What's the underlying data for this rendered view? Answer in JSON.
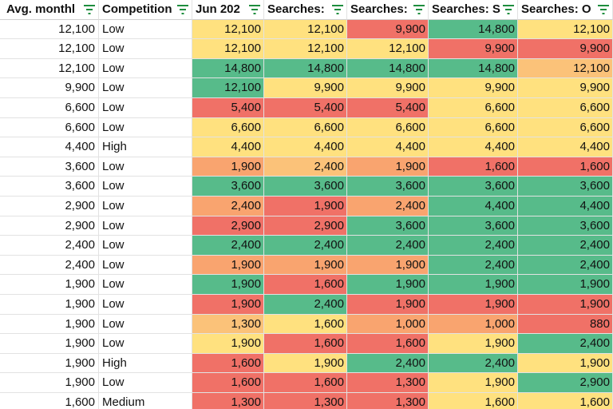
{
  "colors": {
    "green": "#57bb8a",
    "yellow": "#ffe17f",
    "red": "#f07167",
    "orange": "#f9a46f",
    "light_orange": "#fbc279",
    "filter_icon": "#1e8e3e"
  },
  "headers": [
    {
      "label": "Avg. monthl"
    },
    {
      "label": "Competition"
    },
    {
      "label": "Jun 202"
    },
    {
      "label": "Searches:"
    },
    {
      "label": "Searches:"
    },
    {
      "label": "Searches: S"
    },
    {
      "label": "Searches: O"
    }
  ],
  "rows": [
    {
      "avg": "12,100",
      "comp": "Low",
      "vals": [
        {
          "v": "12,100",
          "c": "yellow"
        },
        {
          "v": "12,100",
          "c": "yellow"
        },
        {
          "v": "9,900",
          "c": "red"
        },
        {
          "v": "14,800",
          "c": "green"
        },
        {
          "v": "12,100",
          "c": "yellow"
        }
      ]
    },
    {
      "avg": "12,100",
      "comp": "Low",
      "vals": [
        {
          "v": "12,100",
          "c": "yellow"
        },
        {
          "v": "12,100",
          "c": "yellow"
        },
        {
          "v": "12,100",
          "c": "yellow"
        },
        {
          "v": "9,900",
          "c": "red"
        },
        {
          "v": "9,900",
          "c": "red"
        }
      ]
    },
    {
      "avg": "12,100",
      "comp": "Low",
      "vals": [
        {
          "v": "14,800",
          "c": "green"
        },
        {
          "v": "14,800",
          "c": "green"
        },
        {
          "v": "14,800",
          "c": "green"
        },
        {
          "v": "14,800",
          "c": "green"
        },
        {
          "v": "12,100",
          "c": "light_orange"
        }
      ]
    },
    {
      "avg": "9,900",
      "comp": "Low",
      "vals": [
        {
          "v": "12,100",
          "c": "green"
        },
        {
          "v": "9,900",
          "c": "yellow"
        },
        {
          "v": "9,900",
          "c": "yellow"
        },
        {
          "v": "9,900",
          "c": "yellow"
        },
        {
          "v": "9,900",
          "c": "yellow"
        }
      ]
    },
    {
      "avg": "6,600",
      "comp": "Low",
      "vals": [
        {
          "v": "5,400",
          "c": "red"
        },
        {
          "v": "5,400",
          "c": "red"
        },
        {
          "v": "5,400",
          "c": "red"
        },
        {
          "v": "6,600",
          "c": "yellow"
        },
        {
          "v": "6,600",
          "c": "yellow"
        }
      ]
    },
    {
      "avg": "6,600",
      "comp": "Low",
      "vals": [
        {
          "v": "6,600",
          "c": "yellow"
        },
        {
          "v": "6,600",
          "c": "yellow"
        },
        {
          "v": "6,600",
          "c": "yellow"
        },
        {
          "v": "6,600",
          "c": "yellow"
        },
        {
          "v": "6,600",
          "c": "yellow"
        }
      ]
    },
    {
      "avg": "4,400",
      "comp": "High",
      "vals": [
        {
          "v": "4,400",
          "c": "yellow"
        },
        {
          "v": "4,400",
          "c": "yellow"
        },
        {
          "v": "4,400",
          "c": "yellow"
        },
        {
          "v": "4,400",
          "c": "yellow"
        },
        {
          "v": "4,400",
          "c": "yellow"
        }
      ]
    },
    {
      "avg": "3,600",
      "comp": "Low",
      "vals": [
        {
          "v": "1,900",
          "c": "orange"
        },
        {
          "v": "2,400",
          "c": "light_orange"
        },
        {
          "v": "1,900",
          "c": "orange"
        },
        {
          "v": "1,600",
          "c": "red"
        },
        {
          "v": "1,600",
          "c": "red"
        }
      ]
    },
    {
      "avg": "3,600",
      "comp": "Low",
      "vals": [
        {
          "v": "3,600",
          "c": "green"
        },
        {
          "v": "3,600",
          "c": "green"
        },
        {
          "v": "3,600",
          "c": "green"
        },
        {
          "v": "3,600",
          "c": "green"
        },
        {
          "v": "3,600",
          "c": "green"
        }
      ]
    },
    {
      "avg": "2,900",
      "comp": "Low",
      "vals": [
        {
          "v": "2,400",
          "c": "orange"
        },
        {
          "v": "1,900",
          "c": "red"
        },
        {
          "v": "2,400",
          "c": "orange"
        },
        {
          "v": "4,400",
          "c": "green"
        },
        {
          "v": "4,400",
          "c": "green"
        }
      ]
    },
    {
      "avg": "2,900",
      "comp": "Low",
      "vals": [
        {
          "v": "2,900",
          "c": "red"
        },
        {
          "v": "2,900",
          "c": "red"
        },
        {
          "v": "3,600",
          "c": "green"
        },
        {
          "v": "3,600",
          "c": "green"
        },
        {
          "v": "3,600",
          "c": "green"
        }
      ]
    },
    {
      "avg": "2,400",
      "comp": "Low",
      "vals": [
        {
          "v": "2,400",
          "c": "green"
        },
        {
          "v": "2,400",
          "c": "green"
        },
        {
          "v": "2,400",
          "c": "green"
        },
        {
          "v": "2,400",
          "c": "green"
        },
        {
          "v": "2,400",
          "c": "green"
        }
      ]
    },
    {
      "avg": "2,400",
      "comp": "Low",
      "vals": [
        {
          "v": "1,900",
          "c": "orange"
        },
        {
          "v": "1,900",
          "c": "orange"
        },
        {
          "v": "1,900",
          "c": "orange"
        },
        {
          "v": "2,400",
          "c": "green"
        },
        {
          "v": "2,400",
          "c": "green"
        }
      ]
    },
    {
      "avg": "1,900",
      "comp": "Low",
      "vals": [
        {
          "v": "1,900",
          "c": "green"
        },
        {
          "v": "1,600",
          "c": "red"
        },
        {
          "v": "1,900",
          "c": "green"
        },
        {
          "v": "1,900",
          "c": "green"
        },
        {
          "v": "1,900",
          "c": "green"
        }
      ]
    },
    {
      "avg": "1,900",
      "comp": "Low",
      "vals": [
        {
          "v": "1,900",
          "c": "red"
        },
        {
          "v": "2,400",
          "c": "green"
        },
        {
          "v": "1,900",
          "c": "red"
        },
        {
          "v": "1,900",
          "c": "red"
        },
        {
          "v": "1,900",
          "c": "red"
        }
      ]
    },
    {
      "avg": "1,900",
      "comp": "Low",
      "vals": [
        {
          "v": "1,300",
          "c": "light_orange"
        },
        {
          "v": "1,600",
          "c": "yellow"
        },
        {
          "v": "1,000",
          "c": "orange"
        },
        {
          "v": "1,000",
          "c": "orange"
        },
        {
          "v": "880",
          "c": "red"
        }
      ]
    },
    {
      "avg": "1,900",
      "comp": "Low",
      "vals": [
        {
          "v": "1,900",
          "c": "yellow"
        },
        {
          "v": "1,600",
          "c": "red"
        },
        {
          "v": "1,600",
          "c": "red"
        },
        {
          "v": "1,900",
          "c": "yellow"
        },
        {
          "v": "2,400",
          "c": "green"
        }
      ]
    },
    {
      "avg": "1,900",
      "comp": "High",
      "vals": [
        {
          "v": "1,600",
          "c": "red"
        },
        {
          "v": "1,900",
          "c": "yellow"
        },
        {
          "v": "2,400",
          "c": "green"
        },
        {
          "v": "2,400",
          "c": "green"
        },
        {
          "v": "1,900",
          "c": "yellow"
        }
      ]
    },
    {
      "avg": "1,900",
      "comp": "Low",
      "vals": [
        {
          "v": "1,600",
          "c": "red"
        },
        {
          "v": "1,600",
          "c": "red"
        },
        {
          "v": "1,300",
          "c": "red"
        },
        {
          "v": "1,900",
          "c": "yellow"
        },
        {
          "v": "2,900",
          "c": "green"
        }
      ]
    },
    {
      "avg": "1,600",
      "comp": "Medium",
      "vals": [
        {
          "v": "1,300",
          "c": "red"
        },
        {
          "v": "1,300",
          "c": "red"
        },
        {
          "v": "1,300",
          "c": "red"
        },
        {
          "v": "1,600",
          "c": "yellow"
        },
        {
          "v": "1,600",
          "c": "yellow"
        }
      ]
    }
  ]
}
